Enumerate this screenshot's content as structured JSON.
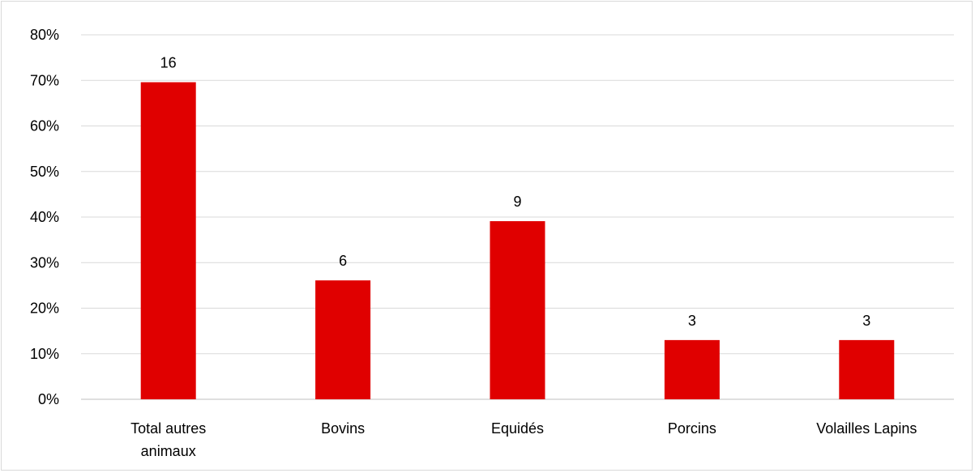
{
  "chart_data": {
    "type": "bar",
    "categories": [
      [
        "Total autres",
        "animaux"
      ],
      [
        "Bovins"
      ],
      [
        "Equidés"
      ],
      [
        "Porcins"
      ],
      [
        "Volailles Lapins"
      ]
    ],
    "values": [
      69.6,
      26.1,
      39.1,
      13.0,
      13.0
    ],
    "data_labels": [
      "16",
      "6",
      "9",
      "3",
      "3"
    ],
    "y_ticks": [
      "0%",
      "10%",
      "20%",
      "30%",
      "40%",
      "50%",
      "60%",
      "70%",
      "80%"
    ],
    "ylim": [
      0,
      80
    ],
    "y_unit": "%",
    "grid": true,
    "bar_color": "#e00000",
    "grid_color": "#d9d9d9",
    "axis_color": "#bfbfbf"
  }
}
